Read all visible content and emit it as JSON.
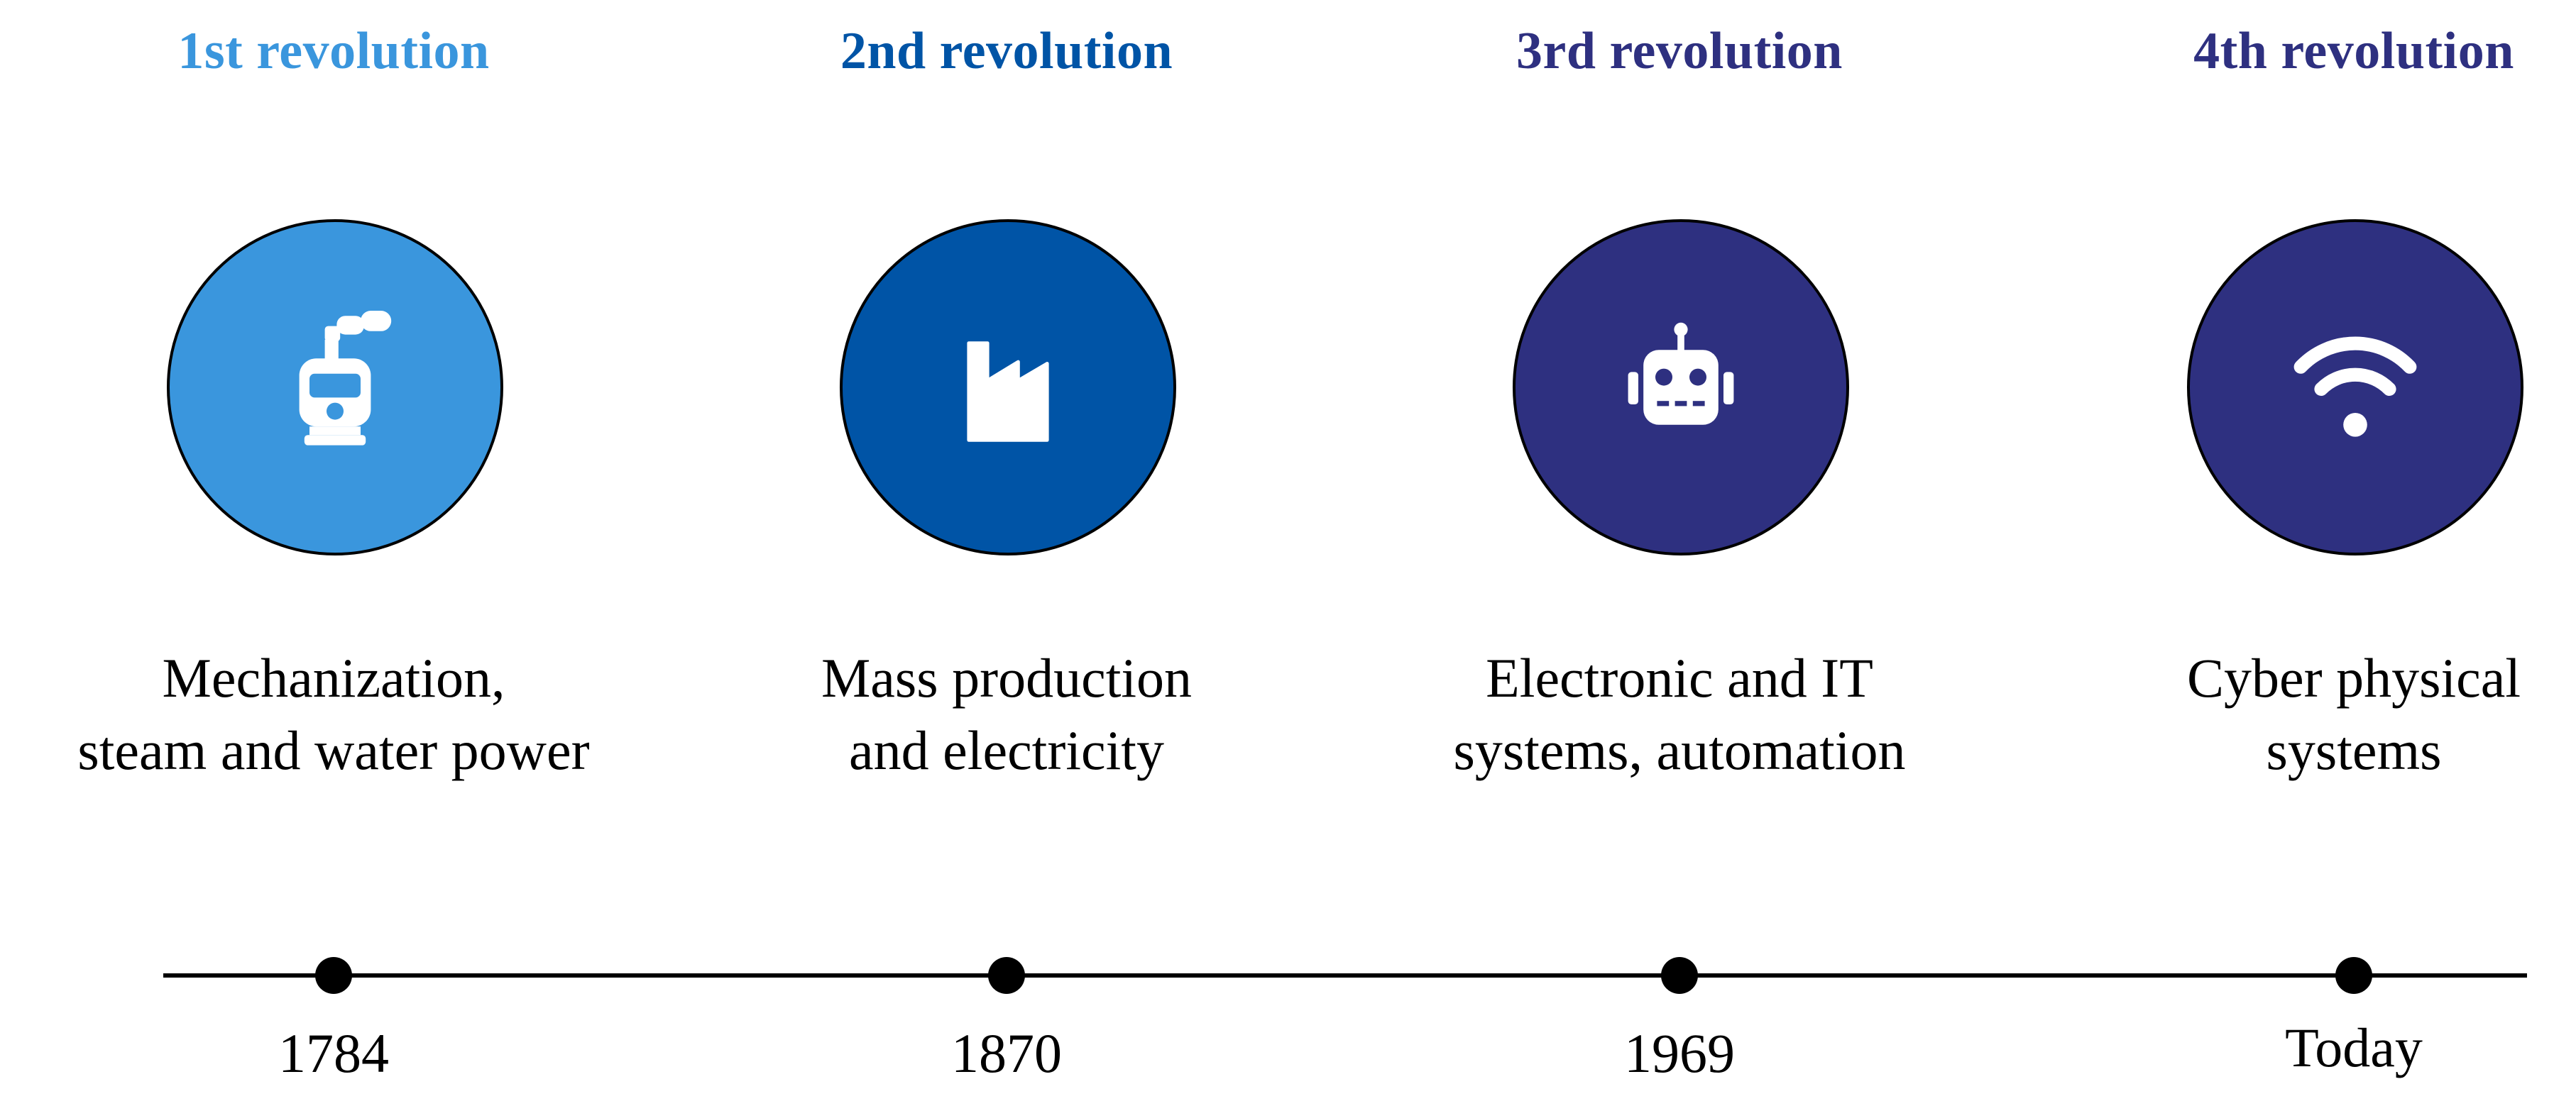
{
  "revolutions": [
    {
      "title": "1st revolution",
      "color": "#3a96dd",
      "icon": "steam-train-icon",
      "desc_line1": "Mechanization,",
      "desc_line2": "steam and water power",
      "year": "1784"
    },
    {
      "title": "2nd revolution",
      "color": "#0054a6",
      "icon": "factory-icon",
      "desc_line1": "Mass production",
      "desc_line2": "and electricity",
      "year": "1870"
    },
    {
      "title": "3rd revolution",
      "color": "#2e3080",
      "icon": "robot-icon",
      "desc_line1": "Electronic and IT",
      "desc_line2": "systems, automation",
      "year": "1969"
    },
    {
      "title": "4th revolution",
      "color": "#2e3080",
      "icon": "wifi-icon",
      "desc_line1": "Cyber physical",
      "desc_line2": "systems",
      "year": "Today"
    }
  ]
}
